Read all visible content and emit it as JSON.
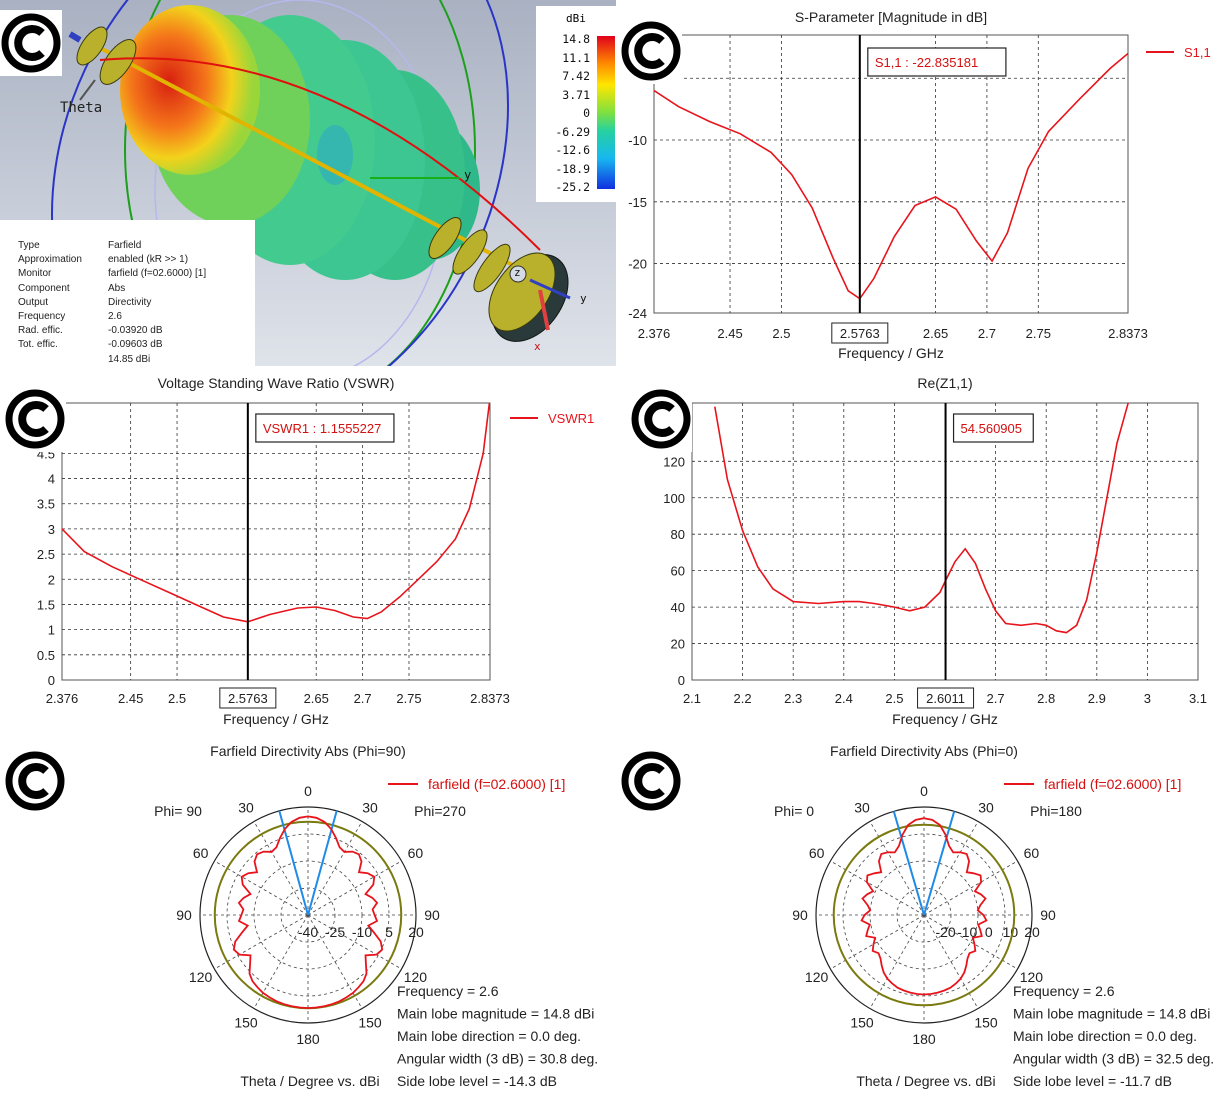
{
  "logos": {
    "text": "©"
  },
  "farfield3d": {
    "theta_label": "Theta",
    "axis_y": "y",
    "axis_z": "z",
    "axis_x": "x",
    "colorbar_unit": "dBi",
    "colorbar_ticks": [
      "14.8",
      "11.1",
      "7.42",
      "3.71",
      "0",
      "-6.29",
      "-12.6",
      "-18.9",
      "-25.2"
    ],
    "info": [
      {
        "k": "Type",
        "v": "Farfield"
      },
      {
        "k": "Approximation",
        "v": "enabled (kR >> 1)"
      },
      {
        "k": "Monitor",
        "v": "farfield (f=02.6000) [1]"
      },
      {
        "k": "Component",
        "v": "Abs"
      },
      {
        "k": "Output",
        "v": "Directivity"
      },
      {
        "k": "Frequency",
        "v": "2.6"
      },
      {
        "k": "Rad. effic.",
        "v": "-0.03920 dB"
      },
      {
        "k": "Tot. effic.",
        "v": "-0.09603 dB"
      },
      {
        "k": "",
        "v": "14.85 dBi"
      }
    ]
  },
  "chart_data": [
    {
      "type": "line",
      "title": "S-Parameter [Magnitude in dB]",
      "xlabel": "Frequency / GHz",
      "ylabel": "",
      "xlim": [
        2.376,
        2.8373
      ],
      "ylim": [
        -24,
        -1.5
      ],
      "xticks": [
        "2.376",
        "2.45",
        "2.5",
        "2.5763",
        "2.65",
        "2.7",
        "2.75",
        "2.8373"
      ],
      "yticks": [
        "-5",
        "-10",
        "-15",
        "-20",
        "-24"
      ],
      "series": [
        {
          "name": "S1,1",
          "color": "#e8141c",
          "x": [
            2.376,
            2.4,
            2.43,
            2.46,
            2.49,
            2.51,
            2.53,
            2.55,
            2.565,
            2.5763,
            2.59,
            2.61,
            2.63,
            2.65,
            2.67,
            2.69,
            2.705,
            2.72,
            2.74,
            2.76,
            2.79,
            2.82,
            2.8373
          ],
          "y": [
            -6.0,
            -7.3,
            -8.5,
            -9.5,
            -11.0,
            -12.8,
            -15.5,
            -19.5,
            -22.2,
            -22.84,
            -21.2,
            -17.8,
            -15.3,
            -14.6,
            -15.6,
            -18.2,
            -19.8,
            -17.5,
            -12.3,
            -9.3,
            -6.7,
            -4.2,
            -3.0
          ]
        }
      ],
      "marker": {
        "x": 2.5763,
        "label": "S1,1 : -22.835181"
      }
    },
    {
      "type": "line",
      "title": "Voltage Standing Wave Ratio (VSWR)",
      "xlabel": "Frequency / GHz",
      "ylabel": "",
      "xlim": [
        2.376,
        2.8373
      ],
      "ylim": [
        0,
        5.5
      ],
      "xticks": [
        "2.376",
        "2.45",
        "2.5",
        "2.5763",
        "2.65",
        "2.7",
        "2.75",
        "2.8373"
      ],
      "yticks": [
        "0",
        "0.5",
        "1",
        "1.5",
        "2",
        "2.5",
        "3",
        "3.5",
        "4",
        "4.5"
      ],
      "series": [
        {
          "name": "VSWR1",
          "color": "#e8141c",
          "x": [
            2.376,
            2.4,
            2.43,
            2.46,
            2.49,
            2.52,
            2.55,
            2.5763,
            2.6,
            2.63,
            2.65,
            2.67,
            2.69,
            2.705,
            2.72,
            2.74,
            2.76,
            2.78,
            2.8,
            2.815,
            2.83,
            2.8373
          ],
          "y": [
            3.0,
            2.55,
            2.25,
            2.0,
            1.75,
            1.5,
            1.25,
            1.156,
            1.3,
            1.43,
            1.45,
            1.38,
            1.25,
            1.22,
            1.35,
            1.65,
            2.0,
            2.35,
            2.8,
            3.4,
            4.5,
            5.6
          ]
        }
      ],
      "marker": {
        "x": 2.5763,
        "label": "VSWR1 : 1.1555227"
      }
    },
    {
      "type": "line",
      "title": "Re(Z1,1)",
      "xlabel": "Frequency / GHz",
      "ylabel": "",
      "xlim": [
        2.1,
        3.1
      ],
      "ylim": [
        0,
        152
      ],
      "xticks": [
        "2.1",
        "2.2",
        "2.3",
        "2.4",
        "2.5",
        "2.6011",
        "2.7",
        "2.8",
        "2.9",
        "3",
        "3.1"
      ],
      "yticks": [
        "0",
        "20",
        "40",
        "60",
        "80",
        "100",
        "120"
      ],
      "series": [
        {
          "name": "",
          "color": "#e8141c",
          "x": [
            2.145,
            2.17,
            2.2,
            2.23,
            2.26,
            2.3,
            2.35,
            2.4,
            2.43,
            2.46,
            2.5,
            2.53,
            2.56,
            2.59,
            2.6011,
            2.62,
            2.64,
            2.66,
            2.68,
            2.7,
            2.72,
            2.75,
            2.78,
            2.8,
            2.82,
            2.84,
            2.86,
            2.88,
            2.9,
            2.92,
            2.94,
            2.955,
            2.965
          ],
          "y": [
            150,
            110,
            82,
            62,
            50,
            43,
            42,
            43,
            43,
            42,
            40,
            38,
            40,
            48,
            54.6,
            65,
            72,
            64,
            50,
            38,
            31,
            30,
            31,
            30,
            27,
            26,
            30,
            44,
            70,
            100,
            130,
            145,
            155
          ]
        }
      ],
      "marker": {
        "x": 2.6011,
        "label": "54.560905"
      }
    },
    {
      "type": "polar",
      "title": "Farfield Directivity Abs (Phi=90)",
      "xlabel": "Theta / Degree vs. dBi",
      "legend": "farfield (f=02.6000) [1]",
      "left_label": "Phi= 90",
      "right_label": "Phi=270",
      "angle_labels": [
        "0",
        "30",
        "60",
        "90",
        "120",
        "150",
        "180",
        "150",
        "120",
        "90",
        "60",
        "30"
      ],
      "radial_labels": [
        "-40",
        "-25",
        "-10",
        "5",
        "20"
      ],
      "rlim": [
        -40,
        20
      ],
      "beam_half_width_deg": 15.4,
      "ref_level": 11.8,
      "series": [
        {
          "name": "farfield (f=02.6000) [1]",
          "color": "#e8141c",
          "theta": [
            0,
            5,
            10,
            15,
            20,
            25,
            30,
            35,
            40,
            45,
            50,
            55,
            60,
            65,
            70,
            75,
            80,
            85,
            90,
            95,
            100,
            105,
            110,
            115,
            120,
            125,
            130,
            135,
            140,
            145,
            150,
            155,
            160,
            165,
            170,
            175,
            180
          ],
          "r": [
            14.8,
            14.2,
            12.5,
            9.5,
            5.5,
            1.5,
            0.5,
            3.0,
            4.0,
            2.0,
            -3.0,
            0.5,
            2.5,
            0.0,
            -6.0,
            -3.0,
            -1.0,
            -4.0,
            -3.0,
            -1.5,
            -6.0,
            -2.0,
            3.0,
            5.5,
            4.0,
            -1.0,
            2.0,
            6.0,
            8.0,
            9.0,
            10.0,
            10.5,
            11.0,
            11.3,
            11.5,
            11.6,
            11.7
          ]
        }
      ],
      "annotations": [
        "Frequency = 2.6",
        "Main lobe magnitude =     14.8 dBi",
        "Main lobe direction =     0.0 deg.",
        "Angular width (3 dB) =    30.8 deg.",
        "Side lobe level =  -14.3 dB"
      ]
    },
    {
      "type": "polar",
      "title": "Farfield Directivity Abs (Phi=0)",
      "xlabel": "Theta / Degree vs. dBi",
      "legend": "farfield (f=02.6000) [1]",
      "left_label": "Phi=  0",
      "right_label": "Phi=180",
      "angle_labels": [
        "0",
        "30",
        "60",
        "90",
        "120",
        "150",
        "180",
        "150",
        "120",
        "90",
        "60",
        "30"
      ],
      "radial_labels": [
        "-20",
        "-10",
        "0",
        "10",
        "20"
      ],
      "rlim": [
        -30,
        20
      ],
      "beam_half_width_deg": 16.25,
      "ref_level": 11.8,
      "series": [
        {
          "name": "farfield (f=02.6000) [1]",
          "color": "#e8141c",
          "theta": [
            0,
            5,
            10,
            15,
            20,
            25,
            30,
            35,
            40,
            45,
            50,
            55,
            60,
            65,
            70,
            75,
            80,
            85,
            90,
            95,
            100,
            105,
            110,
            115,
            120,
            125,
            130,
            135,
            140,
            145,
            150,
            155,
            160,
            165,
            170,
            175,
            180
          ],
          "r": [
            14.8,
            14.2,
            12.3,
            8.5,
            4.0,
            2.0,
            3.5,
            4.5,
            2.5,
            -2.0,
            0.0,
            2.0,
            0.5,
            -4.0,
            -2.0,
            -0.5,
            -3.5,
            -5.0,
            -2.5,
            -1.0,
            -4.5,
            -3.0,
            -1.5,
            -5.0,
            -3.0,
            -1.0,
            -2.5,
            -1.5,
            0.5,
            2.5,
            4.0,
            5.0,
            5.8,
            6.2,
            6.5,
            6.7,
            6.8
          ]
        }
      ],
      "annotations": [
        "Frequency = 2.6",
        "Main lobe magnitude =     14.8 dBi",
        "Main lobe direction =     0.0 deg.",
        "Angular width (3 dB) =    32.5 deg.",
        "Side lobe level =  -11.7 dB"
      ]
    }
  ]
}
